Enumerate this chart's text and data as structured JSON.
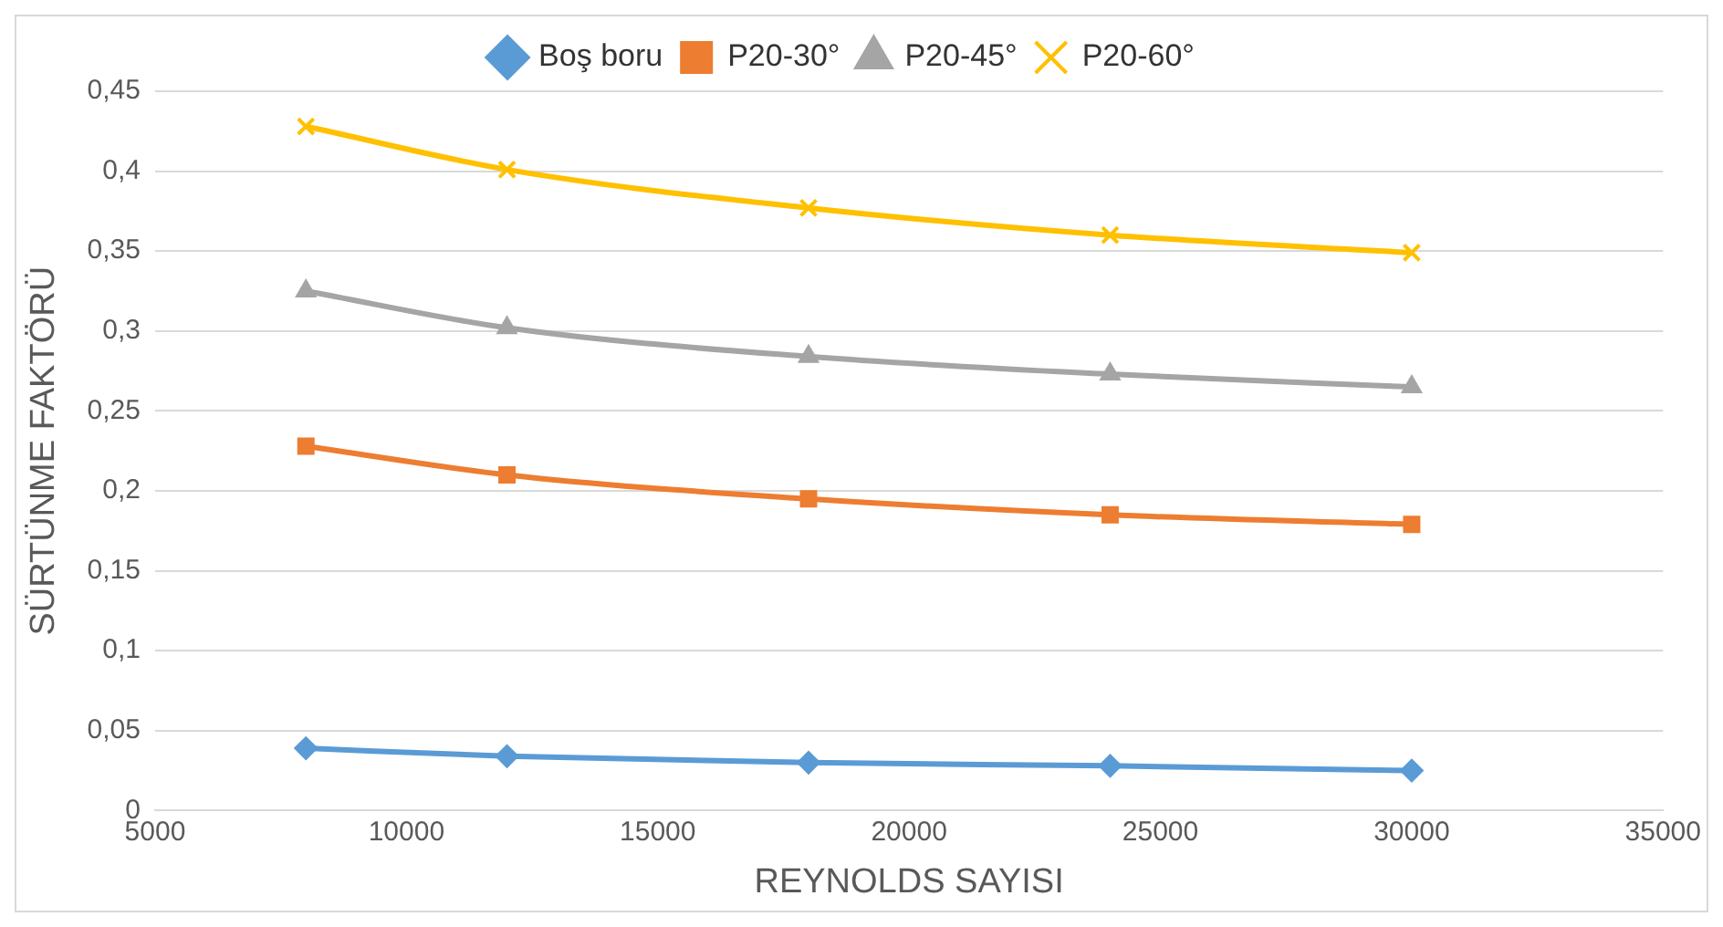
{
  "chart_data": {
    "type": "line",
    "xlabel": "REYNOLDS SAYISI",
    "ylabel": "SÜRTÜNME FAKTÖRÜ",
    "x": [
      8000,
      12000,
      18000,
      24000,
      30000
    ],
    "series": [
      {
        "name": "Boş boru",
        "color": "#5b9bd5",
        "marker": "diamond",
        "values": [
          0.039,
          0.034,
          0.03,
          0.028,
          0.025
        ]
      },
      {
        "name": "P20-30°",
        "color": "#ed7d31",
        "marker": "square",
        "values": [
          0.228,
          0.21,
          0.195,
          0.185,
          0.179
        ]
      },
      {
        "name": "P20-45°",
        "color": "#a5a5a5",
        "marker": "triangle",
        "values": [
          0.325,
          0.302,
          0.284,
          0.273,
          0.265
        ]
      },
      {
        "name": "P20-60°",
        "color": "#ffc000",
        "marker": "cross",
        "values": [
          0.428,
          0.401,
          0.377,
          0.36,
          0.349
        ]
      }
    ],
    "xlim": [
      5000,
      35000
    ],
    "xticks": [
      5000,
      10000,
      15000,
      20000,
      25000,
      30000,
      35000
    ],
    "ylim": [
      0,
      0.45
    ],
    "yticks": [
      0,
      {
        "value": 0.05,
        "label": "0,05"
      },
      {
        "value": 0.1,
        "label": "0,1"
      },
      {
        "value": 0.15,
        "label": "0,15"
      },
      {
        "value": 0.2,
        "label": "0,2"
      },
      {
        "value": 0.25,
        "label": "0,25"
      },
      {
        "value": 0.3,
        "label": "0,3"
      },
      {
        "value": 0.35,
        "label": "0,35"
      },
      {
        "value": 0.4,
        "label": "0,4"
      },
      {
        "value": 0.45,
        "label": "0,45"
      }
    ],
    "grid": "y",
    "legend": "top",
    "line_style": "solid"
  }
}
